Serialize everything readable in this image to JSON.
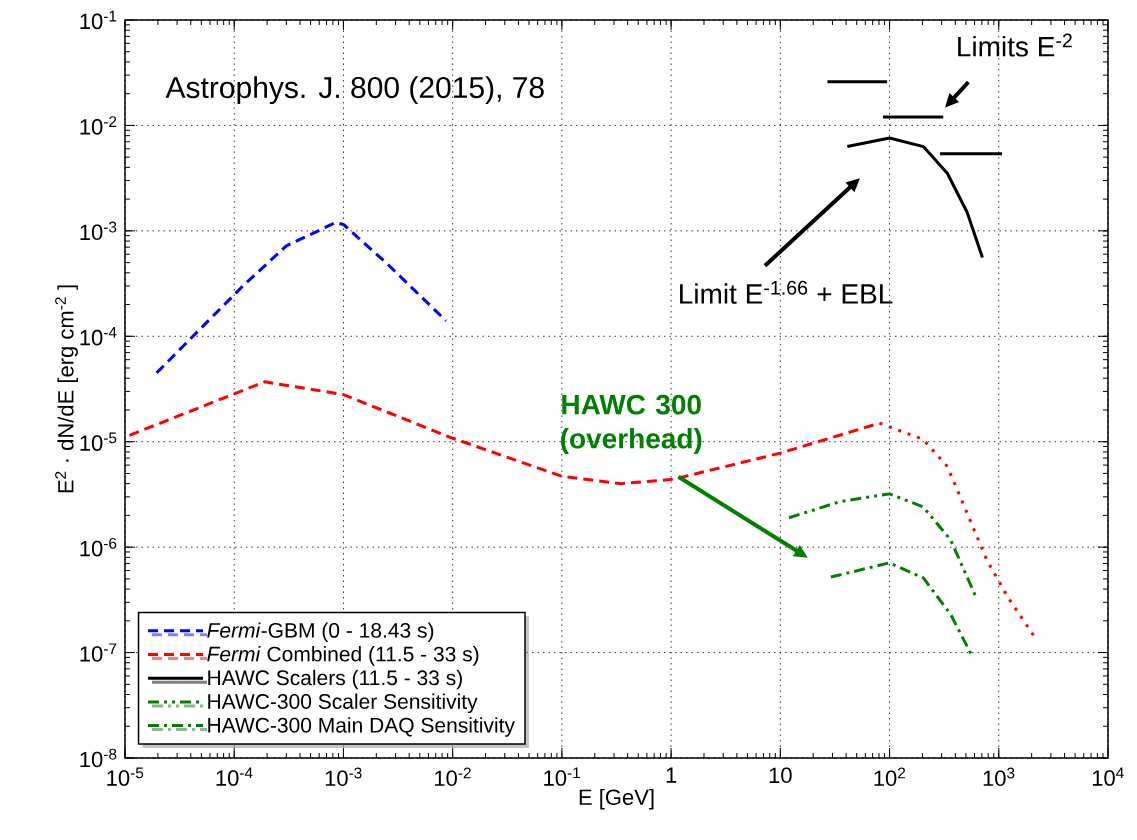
{
  "chart_data": {
    "type": "line",
    "log": "xy",
    "grid": true,
    "legend": "bottom left",
    "xlabel": "E [GeV]",
    "ylabel": "E$^{2}$ · dN/dE [erg cm$^{-2}$ ]",
    "xlim": [
      1e-05,
      10000
    ],
    "ylim": [
      1e-08,
      0.1
    ],
    "xticks": [
      {
        "value": 1e-05,
        "label": "10$^{-5}$"
      },
      {
        "value": 0.0001,
        "label": "10$^{-4}$"
      },
      {
        "value": 0.001,
        "label": "10$^{-3}$"
      },
      {
        "value": 0.01,
        "label": "10$^{-2}$"
      },
      {
        "value": 0.1,
        "label": "10$^{-1}$"
      },
      1,
      10,
      {
        "value": 100,
        "label": "10$^{2}$"
      },
      {
        "value": 1000,
        "label": "10$^{3}$"
      },
      {
        "value": 10000,
        "label": "10$^{4}$"
      }
    ],
    "yticks": [
      {
        "value": 1e-08,
        "label": "10$^{-8}$"
      },
      {
        "value": 1e-07,
        "label": "10$^{-7}$"
      },
      {
        "value": 1e-06,
        "label": "10$^{-6}$"
      },
      {
        "value": 1e-05,
        "label": "10$^{-5}$"
      },
      {
        "value": 0.0001,
        "label": "10$^{-4}$"
      },
      {
        "value": 0.001,
        "label": "10$^{-3}$"
      },
      {
        "value": 0.01,
        "label": "10$^{-2}$"
      },
      {
        "value": 0.1,
        "label": "10$^{-1}$"
      }
    ],
    "series": [
      {
        "name": "*Fermi*-GBM (0 - 18.43 s)",
        "color": "#0000ff",
        "line_style": "dashed",
        "x": [
          1.95e-05,
          0.00012,
          0.0003,
          0.00085,
          0.001,
          0.0025,
          0.0087
        ],
        "values": [
          4.5e-05,
          0.0003,
          0.00072,
          0.0012,
          0.00115,
          0.00049,
          0.00014
        ]
      },
      {
        "name": "*Fermi* Combined (11.5 - 33 s)",
        "color": "#ff0000",
        "line_style": "dashed",
        "x": [
          1.1e-05,
          0.00019,
          0.001,
          0.0095,
          0.1,
          0.35,
          1.05,
          10,
          81
        ],
        "values": [
          1.15e-05,
          3.7e-05,
          2.8e-05,
          1.1e-05,
          4.7e-06,
          4e-06,
          4.4e-06,
          7.8e-06,
          1.5e-05
        ]
      },
      {
        "color": "#ff0000",
        "line_style": "dotted",
        "x": [
          81,
          100,
          204,
          339,
          513,
          776,
          1200,
          2240
        ],
        "values": [
          1.5e-05,
          1.38e-05,
          1.05e-05,
          5.8e-06,
          2.1e-06,
          7.6e-07,
          3.4e-07,
          1.3e-07
        ]
      },
      {
        "name": "HAWC Scalers (11.5 - 33 s)",
        "color": "#000000",
        "line_style": "solid",
        "x": [
          41,
          100,
          204,
          339,
          513,
          708
        ],
        "values": [
          0.0063,
          0.0076,
          0.0063,
          0.0035,
          0.0015,
          0.00056
        ]
      },
      {
        "color": "#000000",
        "line_style": "solid",
        "x": [
          27,
          95
        ],
        "values": [
          0.026,
          0.026
        ]
      },
      {
        "color": "#000000",
        "line_style": "solid",
        "x": [
          87,
          310
        ],
        "values": [
          0.012,
          0.012
        ]
      },
      {
        "color": "#000000",
        "line_style": "solid",
        "x": [
          290,
          1070
        ],
        "values": [
          0.0054,
          0.0054
        ]
      },
      {
        "name": "HAWC-300 Scaler Sensitivity",
        "color": "#008000",
        "line_style": "dashdotdot",
        "x": [
          12,
          35,
          100,
          204,
          363,
          631
        ],
        "values": [
          1.9e-06,
          2.7e-06,
          3.2e-06,
          2.4e-06,
          1.17e-06,
          3.2e-07
        ]
      },
      {
        "name": "HAWC-300 Main DAQ Sensitivity",
        "color": "#008000",
        "line_style": "dashdot",
        "x": [
          29,
          100,
          204,
          363,
          575
        ],
        "values": [
          5.2e-07,
          7.1e-07,
          5.1e-07,
          2.3e-07,
          9.1e-08
        ]
      }
    ],
    "annotations": [
      "Astrophys. J. 800 (2015), 78",
      "Limits E$^{-2}$",
      "Limit E$^{-1.66}$ + EBL",
      "HAWC 300 (overhead)"
    ]
  }
}
